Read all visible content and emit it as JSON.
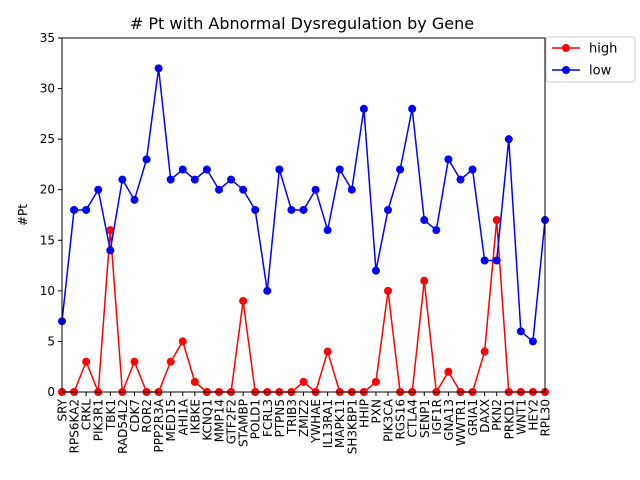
{
  "chart_data": {
    "type": "line",
    "title": "# Pt with Abnormal Dysregulation by Gene",
    "xlabel": "",
    "ylabel": "#Pt",
    "ylim": [
      0,
      35
    ],
    "yticks": [
      0,
      5,
      10,
      15,
      20,
      25,
      30,
      35
    ],
    "categories": [
      "SRY",
      "RPS6KA2",
      "CRKL",
      "PIK3R1",
      "TBK1",
      "RAD54L2",
      "CDK7",
      "ROR2",
      "PPP2R3A",
      "MED15",
      "AHI1A",
      "IKBKE",
      "KCNQ1",
      "MMP14",
      "GTF2F2",
      "STAMBP",
      "POLD1",
      "FCRL3",
      "PTPN5",
      "TRIB3",
      "ZMIZ2",
      "YWHAE",
      "IL13RA1",
      "MAPK11",
      "SH3KBP1",
      "HHIP",
      "PXN",
      "PIK3CA",
      "RGS16",
      "CTLA4",
      "SENP1",
      "IGF1R",
      "GNA13",
      "WWTR1",
      "GRIA1",
      "DAXX",
      "PKN2",
      "PRKD1",
      "WNT1",
      "HEY2",
      "RPL30"
    ],
    "series": [
      {
        "name": "high",
        "color": "#ff0000",
        "values": [
          0,
          0,
          3,
          0,
          16,
          0,
          3,
          0,
          0,
          3,
          5,
          1,
          0,
          0,
          0,
          9,
          0,
          0,
          0,
          0,
          1,
          0,
          4,
          0,
          0,
          0,
          1,
          10,
          0,
          0,
          11,
          0,
          2,
          0,
          0,
          4,
          17,
          0,
          0,
          0,
          0
        ]
      },
      {
        "name": "low",
        "color": "#0000ff",
        "values": [
          7,
          18,
          18,
          20,
          14,
          21,
          19,
          23,
          32,
          21,
          22,
          21,
          22,
          20,
          21,
          20,
          18,
          10,
          22,
          18,
          18,
          20,
          16,
          22,
          20,
          28,
          12,
          18,
          22,
          28,
          17,
          16,
          23,
          21,
          22,
          13,
          13,
          25,
          6,
          5,
          17
        ]
      }
    ],
    "legend_position": "top-right",
    "grid": false
  }
}
